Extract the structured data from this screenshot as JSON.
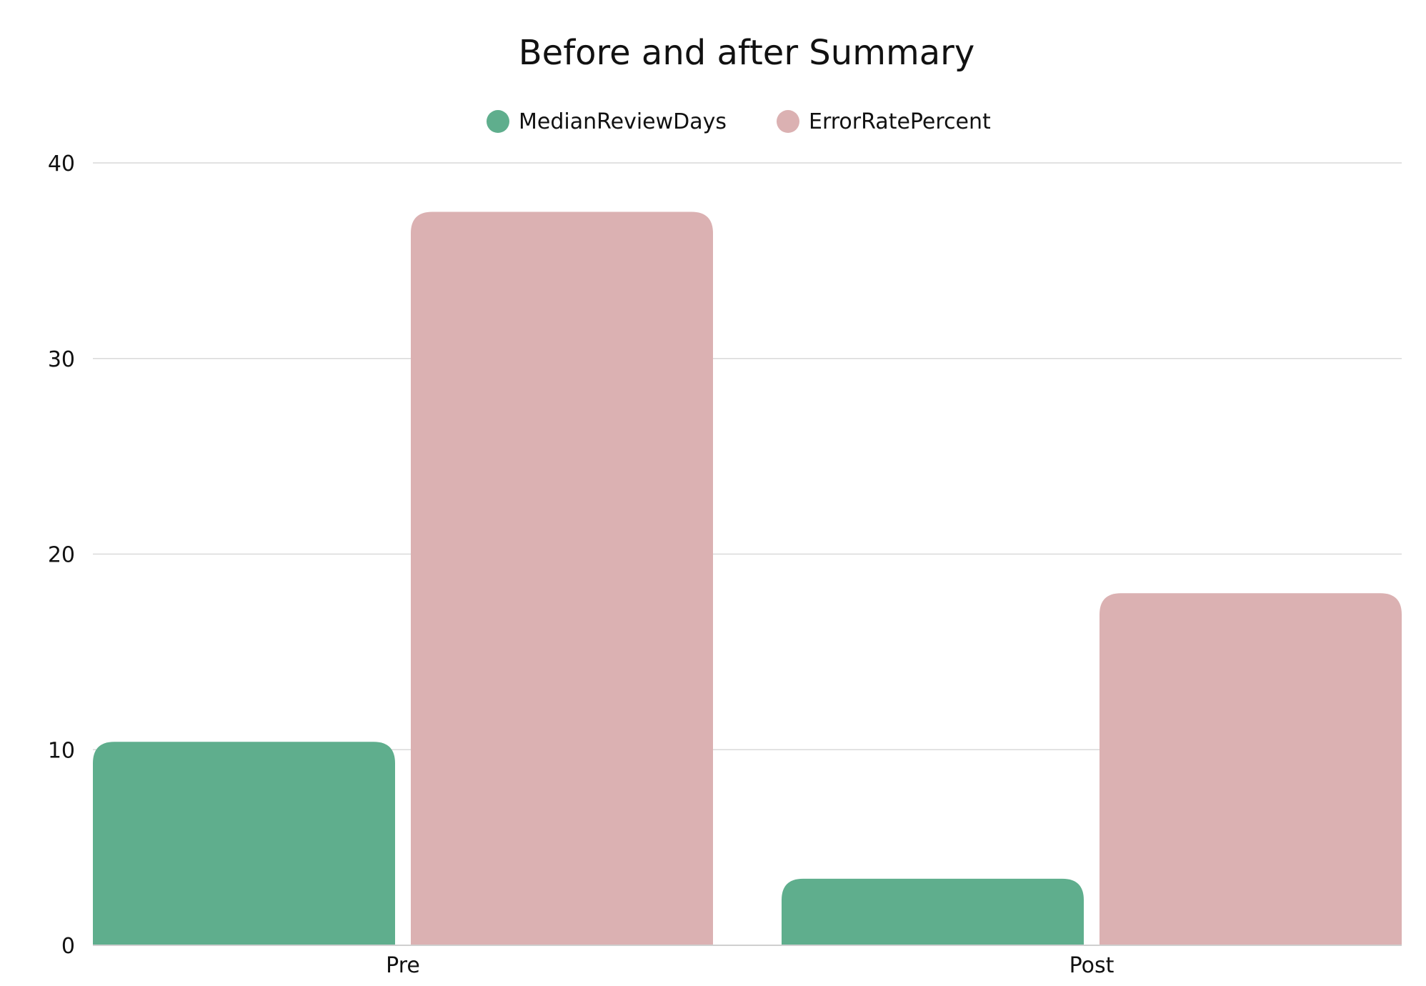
{
  "chart_data": {
    "type": "bar",
    "title": "Before and after Summary",
    "categories": [
      "Pre",
      "Post"
    ],
    "series": [
      {
        "name": "MedianReviewDays",
        "color": "#5fae8d",
        "values": [
          10.4,
          3.4
        ]
      },
      {
        "name": "ErrorRatePercent",
        "color": "#dbb1b2",
        "values": [
          37.5,
          18
        ]
      }
    ],
    "ylim": [
      0,
      40
    ],
    "yticks": [
      0,
      10,
      20,
      30,
      40
    ],
    "xlabel": "",
    "ylabel": "",
    "grid": true,
    "legend_position": "top-center"
  }
}
